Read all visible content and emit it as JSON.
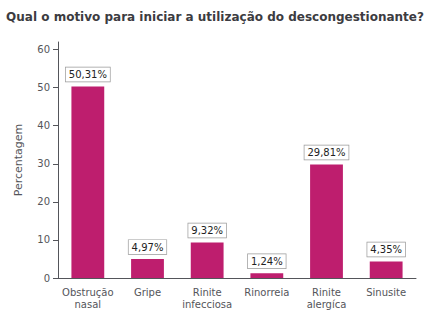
{
  "chart_data": {
    "type": "bar",
    "title": "Qual o motivo para iniciar a utilização do descongestionante?",
    "ylabel": "Percentagem",
    "categories": [
      "Obstrução\nnasal",
      "Gripe",
      "Rinite\ninfecciosa",
      "Rinorreia",
      "Rinite\nalergíca",
      "Sinusite"
    ],
    "values": [
      50.31,
      4.97,
      9.32,
      1.24,
      29.81,
      4.35
    ],
    "value_labels": [
      "50,31%",
      "4,97%",
      "9,32%",
      "1,24%",
      "29,81%",
      "4,35%"
    ],
    "color": "#be1e6e",
    "ylim": [
      0,
      62
    ],
    "yticks": [
      0,
      10,
      20,
      30,
      40,
      50,
      60
    ],
    "grid": false,
    "data_labels": true
  }
}
